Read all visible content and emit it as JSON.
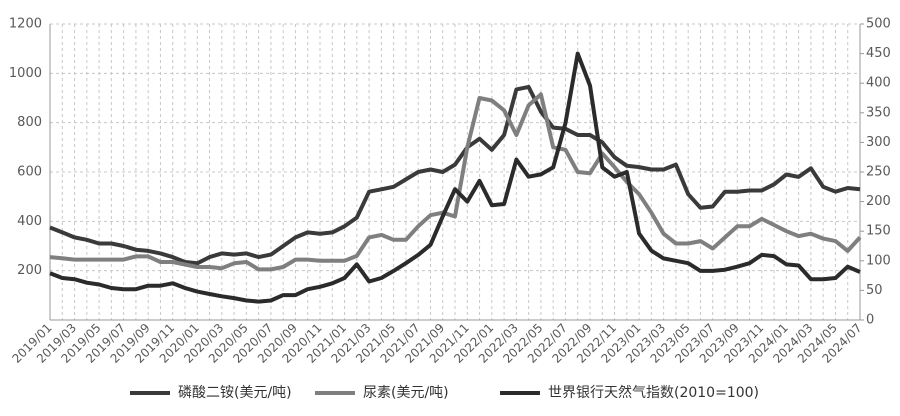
{
  "chart_data": {
    "type": "line",
    "categories": [
      "2019/01",
      null,
      "2019/03",
      null,
      "2019/05",
      null,
      "2019/07",
      null,
      "2019/09",
      null,
      "2019/11",
      null,
      "2020/01",
      null,
      "2020/03",
      null,
      "2020/05",
      null,
      "2020/07",
      null,
      "2020/09",
      null,
      "2020/11",
      null,
      "2021/01",
      null,
      "2021/03",
      null,
      "2021/05",
      null,
      "2021/07",
      null,
      "2021/09",
      null,
      "2021/11",
      null,
      "2022/01",
      null,
      "2022/03",
      null,
      "2022/05",
      null,
      "2022/07",
      null,
      "2022/09",
      null,
      "2022/11",
      null,
      "2023/01",
      null,
      "2023/03",
      null,
      "2023/05",
      null,
      "2023/07",
      null,
      "2023/09",
      null,
      "2023/11",
      null,
      "2024/01",
      null,
      "2024/03",
      null,
      "2024/05",
      null,
      "2024/07"
    ],
    "series": [
      {
        "name": "磷酸二铵(美元/吨)",
        "color": "#3a3a3a",
        "values": [
          375,
          355,
          335,
          325,
          310,
          310,
          300,
          285,
          280,
          270,
          255,
          235,
          230,
          255,
          270,
          265,
          270,
          255,
          265,
          300,
          335,
          355,
          350,
          355,
          380,
          415,
          520,
          530,
          540,
          570,
          600,
          610,
          600,
          630,
          700,
          735,
          690,
          750,
          935,
          945,
          845,
          780,
          775,
          750,
          750,
          720,
          660,
          625,
          620,
          610,
          610,
          630,
          510,
          455,
          460,
          520,
          520,
          525,
          525,
          550,
          590,
          580,
          615,
          540,
          520,
          535,
          530
        ]
      },
      {
        "name": "尿素(美元/吨)",
        "color": "#7f7f7f",
        "values": [
          255,
          250,
          245,
          245,
          245,
          245,
          245,
          258,
          258,
          235,
          235,
          225,
          215,
          215,
          210,
          230,
          235,
          205,
          205,
          215,
          245,
          245,
          240,
          240,
          240,
          260,
          335,
          345,
          325,
          325,
          380,
          425,
          435,
          420,
          700,
          900,
          890,
          850,
          750,
          870,
          915,
          700,
          690,
          600,
          595,
          675,
          620,
          560,
          510,
          435,
          350,
          310,
          310,
          320,
          290,
          335,
          380,
          380,
          410,
          385,
          360,
          340,
          350,
          330,
          320,
          280,
          335
        ]
      },
      {
        "name": "世界银行天然气指数(2010=100)",
        "color": "#2b2b2b",
        "axis": "y2",
        "values": [
          79,
          71,
          69,
          63,
          60,
          54,
          52,
          52,
          58,
          58,
          62,
          54,
          48,
          44,
          40,
          37,
          33,
          31,
          33,
          42,
          42,
          52,
          56,
          62,
          71,
          94,
          65,
          71,
          83,
          96,
          110,
          127,
          175,
          221,
          200,
          235,
          194,
          196,
          271,
          242,
          246,
          258,
          333,
          450,
          396,
          258,
          242,
          250,
          146,
          117,
          104,
          100,
          96,
          83,
          83,
          85,
          90,
          96,
          110,
          108,
          94,
          92,
          69,
          69,
          71,
          90,
          81
        ]
      }
    ],
    "ylim": [
      0,
      1200
    ],
    "yticks": [
      200,
      400,
      600,
      800,
      1000,
      1200
    ],
    "y2lim": [
      0,
      500
    ],
    "y2ticks": [
      0,
      50,
      100,
      150,
      200,
      250,
      300,
      350,
      400,
      450,
      500
    ],
    "grid": true,
    "legend": "bottom"
  }
}
